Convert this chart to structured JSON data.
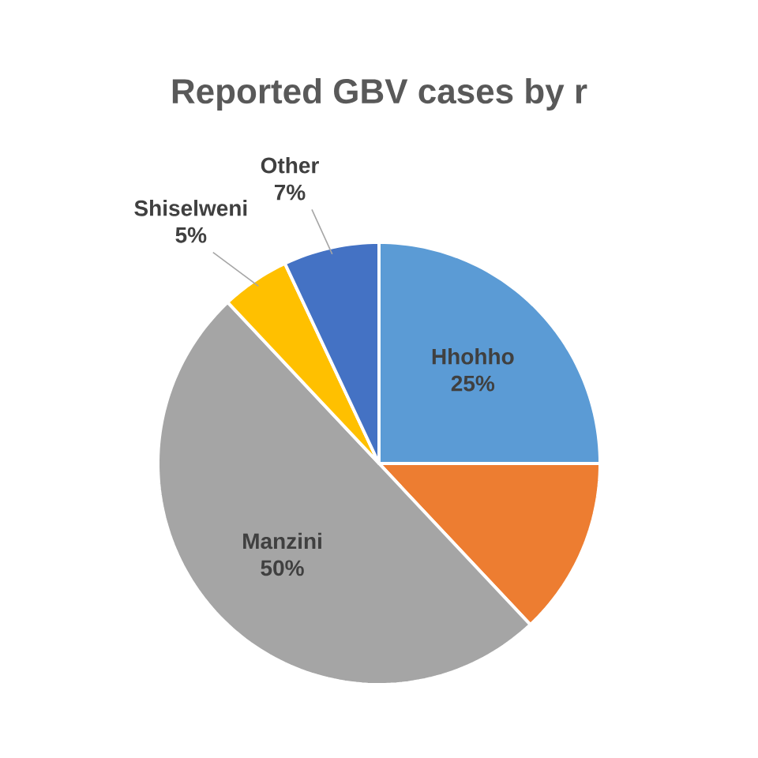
{
  "chart_data": {
    "type": "pie",
    "title": "Reported GBV cases by r",
    "categories": [
      "Hhohho",
      null,
      "Manzini",
      "Shiselweni",
      "Other"
    ],
    "values": [
      25,
      13,
      50,
      5,
      7
    ],
    "colors": [
      "#5b9bd5",
      "#ed7d31",
      "#a5a5a5",
      "#ffc000",
      "#4472c4"
    ],
    "value_labels": [
      "25%",
      null,
      "50%",
      "5%",
      "7%"
    ]
  }
}
